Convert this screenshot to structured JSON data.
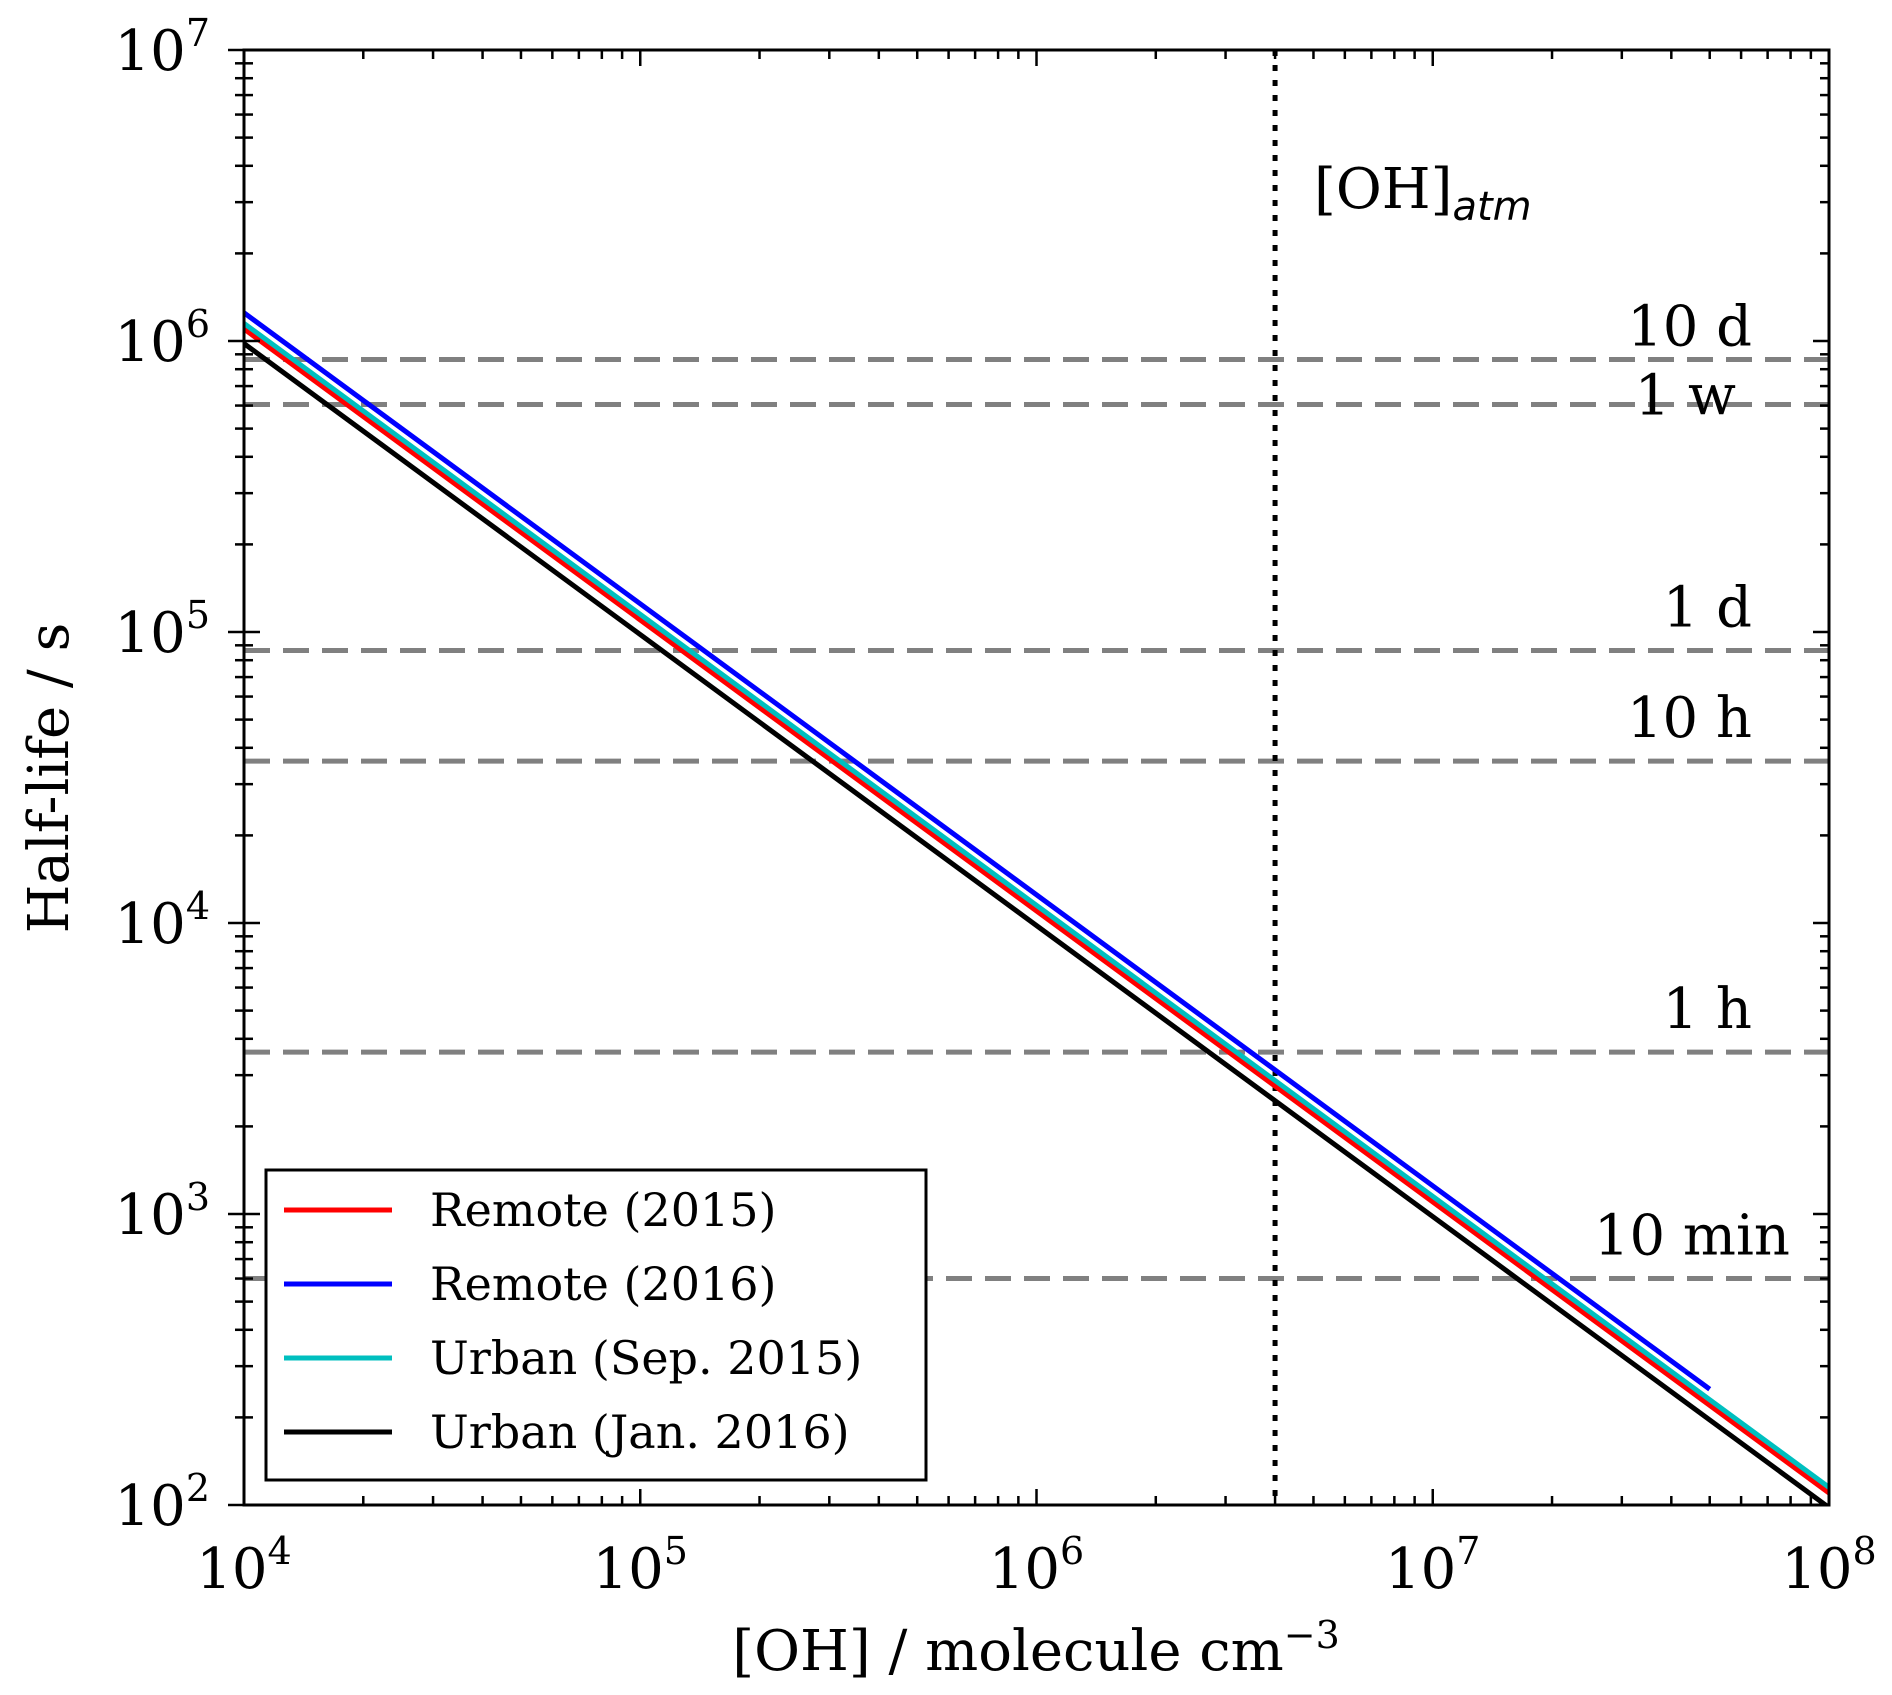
{
  "chart_data": {
    "type": "line",
    "xlabel": "[OH] / molecule cm",
    "xlabel_sup": "−3",
    "ylabel": "Half-life / s",
    "xscale": "log",
    "yscale": "log",
    "xlim": [
      10000,
      100000000
    ],
    "ylim": [
      100,
      10000000
    ],
    "x_ticks": [
      {
        "value": 10000,
        "base": "10",
        "exp": "4"
      },
      {
        "value": 100000,
        "base": "10",
        "exp": "5"
      },
      {
        "value": 1000000,
        "base": "10",
        "exp": "6"
      },
      {
        "value": 10000000,
        "base": "10",
        "exp": "7"
      },
      {
        "value": 100000000,
        "base": "10",
        "exp": "8"
      }
    ],
    "y_ticks": [
      {
        "value": 100,
        "base": "10",
        "exp": "2"
      },
      {
        "value": 1000,
        "base": "10",
        "exp": "3"
      },
      {
        "value": 10000,
        "base": "10",
        "exp": "4"
      },
      {
        "value": 100000,
        "base": "10",
        "exp": "5"
      },
      {
        "value": 1000000,
        "base": "10",
        "exp": "6"
      },
      {
        "value": 10000000,
        "base": "10",
        "exp": "7"
      }
    ],
    "series": [
      {
        "name": "Remote (2015)",
        "color": "#ff0000",
        "x": [
          10000,
          100000000
        ],
        "y": [
          1100000,
          110
        ]
      },
      {
        "name": "Remote (2016)",
        "color": "#0000ff",
        "x": [
          10000,
          50000000
        ],
        "y": [
          1250000,
          250
        ]
      },
      {
        "name": "Urban (Sep. 2015)",
        "color": "#00bfbf",
        "x": [
          10000,
          100000000
        ],
        "y": [
          1150000,
          115
        ]
      },
      {
        "name": "Urban (Jan. 2016)",
        "color": "#000000",
        "x": [
          10000,
          100000000
        ],
        "y": [
          980000,
          98
        ]
      }
    ],
    "reference_lines": [
      {
        "label": "10 d",
        "value": 864000
      },
      {
        "label": "1 w",
        "value": 604800
      },
      {
        "label": "1 d",
        "value": 86400
      },
      {
        "label": "10 h",
        "value": 36000
      },
      {
        "label": "1 h",
        "value": 3600
      },
      {
        "label": "10 min",
        "value": 600
      }
    ],
    "reference_line_color": "#808080",
    "vertical_line": {
      "value": 4000000,
      "label": "[OH]",
      "label_sub": "atm"
    },
    "legend": {
      "position": "lower-left"
    }
  }
}
